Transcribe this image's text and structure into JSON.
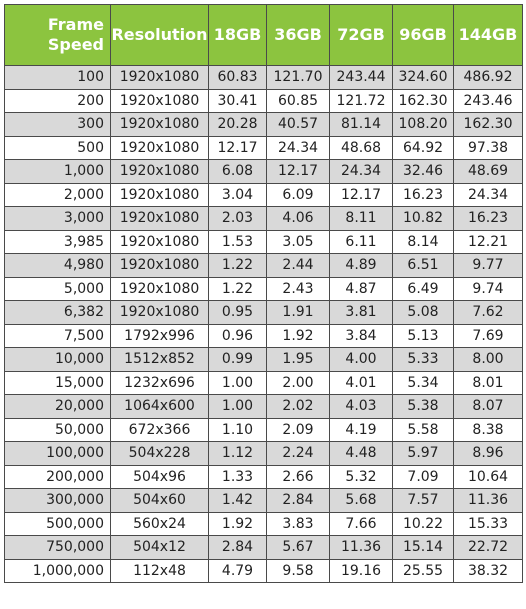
{
  "header": {
    "frame_speed_line1": "Frame",
    "frame_speed_line2": "Speed",
    "resolution": "Resolution",
    "c18": "18GB",
    "c36": "36GB",
    "c72": "72GB",
    "c96": "96GB",
    "c144": "144GB"
  },
  "rows": [
    {
      "speed": "100",
      "res": "1920x1080",
      "c18": "60.83",
      "c36": "121.70",
      "c72": "243.44",
      "c96": "324.60",
      "c144": "486.92"
    },
    {
      "speed": "200",
      "res": "1920x1080",
      "c18": "30.41",
      "c36": "60.85",
      "c72": "121.72",
      "c96": "162.30",
      "c144": "243.46"
    },
    {
      "speed": "300",
      "res": "1920x1080",
      "c18": "20.28",
      "c36": "40.57",
      "c72": "81.14",
      "c96": "108.20",
      "c144": "162.30"
    },
    {
      "speed": "500",
      "res": "1920x1080",
      "c18": "12.17",
      "c36": "24.34",
      "c72": "48.68",
      "c96": "64.92",
      "c144": "97.38"
    },
    {
      "speed": "1,000",
      "res": "1920x1080",
      "c18": "6.08",
      "c36": "12.17",
      "c72": "24.34",
      "c96": "32.46",
      "c144": "48.69"
    },
    {
      "speed": "2,000",
      "res": "1920x1080",
      "c18": "3.04",
      "c36": "6.09",
      "c72": "12.17",
      "c96": "16.23",
      "c144": "24.34"
    },
    {
      "speed": "3,000",
      "res": "1920x1080",
      "c18": "2.03",
      "c36": "4.06",
      "c72": "8.11",
      "c96": "10.82",
      "c144": "16.23"
    },
    {
      "speed": "3,985",
      "res": "1920x1080",
      "c18": "1.53",
      "c36": "3.05",
      "c72": "6.11",
      "c96": "8.14",
      "c144": "12.21"
    },
    {
      "speed": "4,980",
      "res": "1920x1080",
      "c18": "1.22",
      "c36": "2.44",
      "c72": "4.89",
      "c96": "6.51",
      "c144": "9.77"
    },
    {
      "speed": "5,000",
      "res": "1920x1080",
      "c18": "1.22",
      "c36": "2.43",
      "c72": "4.87",
      "c96": "6.49",
      "c144": "9.74"
    },
    {
      "speed": "6,382",
      "res": "1920x1080",
      "c18": "0.95",
      "c36": "1.91",
      "c72": "3.81",
      "c96": "5.08",
      "c144": "7.62"
    },
    {
      "speed": "7,500",
      "res": "1792x996",
      "c18": "0.96",
      "c36": "1.92",
      "c72": "3.84",
      "c96": "5.13",
      "c144": "7.69"
    },
    {
      "speed": "10,000",
      "res": "1512x852",
      "c18": "0.99",
      "c36": "1.95",
      "c72": "4.00",
      "c96": "5.33",
      "c144": "8.00"
    },
    {
      "speed": "15,000",
      "res": "1232x696",
      "c18": "1.00",
      "c36": "2.00",
      "c72": "4.01",
      "c96": "5.34",
      "c144": "8.01"
    },
    {
      "speed": "20,000",
      "res": "1064x600",
      "c18": "1.00",
      "c36": "2.02",
      "c72": "4.03",
      "c96": "5.38",
      "c144": "8.07"
    },
    {
      "speed": "50,000",
      "res": "672x366",
      "c18": "1.10",
      "c36": "2.09",
      "c72": "4.19",
      "c96": "5.58",
      "c144": "8.38"
    },
    {
      "speed": "100,000",
      "res": "504x228",
      "c18": "1.12",
      "c36": "2.24",
      "c72": "4.48",
      "c96": "5.97",
      "c144": "8.96"
    },
    {
      "speed": "200,000",
      "res": "504x96",
      "c18": "1.33",
      "c36": "2.66",
      "c72": "5.32",
      "c96": "7.09",
      "c144": "10.64"
    },
    {
      "speed": "300,000",
      "res": "504x60",
      "c18": "1.42",
      "c36": "2.84",
      "c72": "5.68",
      "c96": "7.57",
      "c144": "11.36"
    },
    {
      "speed": "500,000",
      "res": "560x24",
      "c18": "1.92",
      "c36": "3.83",
      "c72": "7.66",
      "c96": "10.22",
      "c144": "15.33"
    },
    {
      "speed": "750,000",
      "res": "504x12",
      "c18": "2.84",
      "c36": "5.67",
      "c72": "11.36",
      "c96": "15.14",
      "c144": "22.72"
    },
    {
      "speed": "1,000,000",
      "res": "112x48",
      "c18": "4.79",
      "c36": "9.58",
      "c72": "19.16",
      "c96": "25.55",
      "c144": "38.32"
    }
  ],
  "colors": {
    "header_bg": "#8cc43f",
    "header_text": "#ffffff",
    "row_shaded": "#d9d9d9",
    "row_plain": "#ffffff",
    "border": "#4a4a4a"
  }
}
